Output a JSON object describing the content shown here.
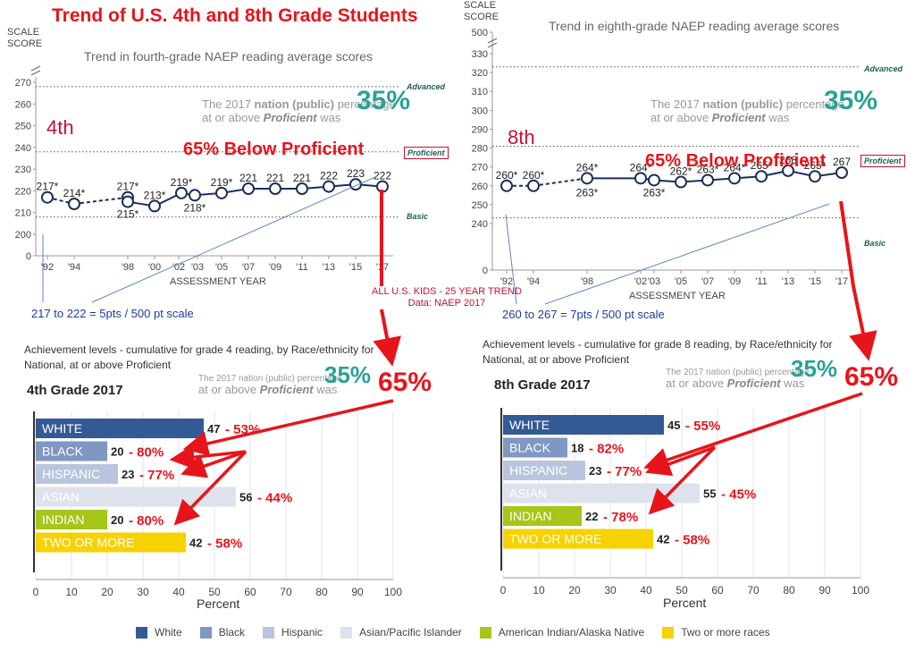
{
  "main_title": "Trend of U.S. 4th and 8th Grade Students",
  "left": {
    "axis_unit_1": "SCALE",
    "axis_unit_2": "SCORE",
    "panel_title": "Trend in fourth-grade NAEP reading average scores",
    "grade_label": "4th",
    "callout_line1_pre": "The 2017 ",
    "callout_line1_bold": "nation (public)",
    "callout_line1_post": " percentage",
    "callout_line2_pre": "at or above ",
    "callout_line2_bold": "Proficient",
    "callout_line2_post": " was ",
    "callout_pct": "35%",
    "below_text": "65% Below Proficient",
    "advanced_label": "Advanced",
    "proficient_label": "Proficient",
    "basic_label": "Basic",
    "xaxis_title": "ASSESSMENT YEAR",
    "note": "217 to 222 = 5pts / 500 pt scale"
  },
  "right": {
    "axis_unit_1": "SCALE",
    "axis_unit_2": "SCORE",
    "panel_title": "Trend in eighth-grade NAEP reading average scores",
    "grade_label": "8th",
    "callout_line1_pre": "The 2017 ",
    "callout_line1_bold": "nation (public)",
    "callout_line1_post": " percentage",
    "callout_line2_pre": "at or above ",
    "callout_line2_bold": "Proficient",
    "callout_line2_post": " was ",
    "callout_pct": "35%",
    "below_text": "65% Below Proficient",
    "advanced_label": "Advanced",
    "proficient_label": "Proficient",
    "basic_label": "Basic",
    "xaxis_title": "ASSESSMENT YEAR",
    "note": "260 to 267 = 7pts / 500 pt scale"
  },
  "trend_note": {
    "line1": "ALL U.S. KIDS - 25 YEAR TREND",
    "line2": "Data: NAEP 2017"
  },
  "bars_left": {
    "ach_title_1": "Achievement levels - cumulative for grade 4 reading, by Race/ethnicity for",
    "ach_title_2": "National, at or above Proficient",
    "heading": "4th Grade 2017",
    "callout_pct": "35%",
    "callout_line1": "The 2017 nation (public) percentage",
    "callout_line2_pre": "at or above ",
    "callout_line2_bold": "Proficient",
    "callout_line2_post": " was",
    "red_pct": "65%",
    "xaxis_title": "Percent"
  },
  "bars_right": {
    "ach_title_1": "Achievement levels - cumulative for grade 8 reading, by Race/ethnicity for",
    "ach_title_2": "National, at or above Proficient",
    "heading": "8th Grade 2017",
    "callout_pct": "35%",
    "callout_line1": "The 2017 nation (public) percentage",
    "callout_line2_pre": "at or above ",
    "callout_line2_bold": "Proficient",
    "callout_line2_post": " was",
    "red_pct": "65%",
    "xaxis_title": "Percent"
  },
  "legend": [
    {
      "label": "White",
      "color": "#345a96"
    },
    {
      "label": "Black",
      "color": "#7f97c2"
    },
    {
      "label": "Hispanic",
      "color": "#b9c5dc"
    },
    {
      "label": "Asian/Pacific Islander",
      "color": "#dde2ec"
    },
    {
      "label": "American Indian/Alaska Native",
      "color": "#a6c619"
    },
    {
      "label": "Two or more races",
      "color": "#f5d200"
    }
  ],
  "chart_data": [
    {
      "type": "line",
      "title": "Trend in fourth-grade NAEP reading average scores",
      "xlabel": "ASSESSMENT YEAR",
      "ylabel": "SCALE SCORE",
      "ylim": [
        0,
        270
      ],
      "y_ticks": [
        "0",
        "200",
        "210",
        "220",
        "230",
        "240",
        "250",
        "260",
        "270"
      ],
      "x": [
        "'92",
        "'94",
        "'98",
        "'98",
        "'00",
        "'02",
        "'03",
        "'05",
        "'07",
        "'09",
        "'11",
        "'13",
        "'15",
        "'17"
      ],
      "series": [
        {
          "values": [
            217,
            214,
            217,
            215,
            213,
            219,
            218,
            219,
            221,
            221,
            221,
            222,
            223,
            222
          ],
          "labels": [
            "217*",
            "214*",
            "217*",
            "215*",
            "213*",
            "219*",
            "218*",
            "219*",
            "221",
            "221",
            "221",
            "222",
            "223",
            "222"
          ]
        }
      ],
      "levels": {
        "Advanced": 268,
        "Proficient": 238,
        "Basic": 208
      }
    },
    {
      "type": "line",
      "title": "Trend in eighth-grade NAEP reading average scores",
      "xlabel": "ASSESSMENT YEAR",
      "ylabel": "SCALE SCORE",
      "ylim": [
        0,
        500
      ],
      "y_ticks": [
        "0",
        "240",
        "250",
        "260",
        "270",
        "280",
        "290",
        "300",
        "310",
        "320",
        "330",
        "500"
      ],
      "x": [
        "'92",
        "'94",
        "'98",
        "'02",
        "'03",
        "'05",
        "'07",
        "'09",
        "'11",
        "'13",
        "'15",
        "'17"
      ],
      "series": [
        {
          "values": [
            260,
            260,
            264,
            264,
            263,
            262,
            263,
            264,
            265,
            268,
            265,
            267
          ],
          "labels": [
            "260*",
            "260*",
            "264*",
            "264*",
            "263*",
            "262*",
            "263*",
            "264*",
            "265*",
            "268",
            "265*",
            "267"
          ],
          "extra_label": "263*"
        }
      ],
      "levels": {
        "Advanced": 323,
        "Proficient": 281,
        "Basic": 243
      }
    },
    {
      "type": "bar",
      "title": "4th Grade 2017",
      "xlabel": "Percent",
      "xlim": [
        0,
        100
      ],
      "categories": [
        "WHITE",
        "BLACK",
        "HISPANIC",
        "ASIAN",
        "INDIAN",
        "TWO OR MORE"
      ],
      "values": [
        47,
        20,
        23,
        56,
        20,
        42
      ],
      "annotations": [
        "- 53%",
        "- 80%",
        "- 77%",
        "- 44%",
        "- 80%",
        "- 58%"
      ]
    },
    {
      "type": "bar",
      "title": "8th Grade 2017",
      "xlabel": "Percent",
      "xlim": [
        0,
        100
      ],
      "categories": [
        "WHITE",
        "BLACK",
        "HISPANIC",
        "ASIAN",
        "INDIAN",
        "TWO OR MORE"
      ],
      "values": [
        45,
        18,
        23,
        55,
        22,
        42
      ],
      "annotations": [
        "- 55%",
        "- 82%",
        "- 77%",
        "- 45%",
        "- 78%",
        "- 58%"
      ]
    }
  ]
}
